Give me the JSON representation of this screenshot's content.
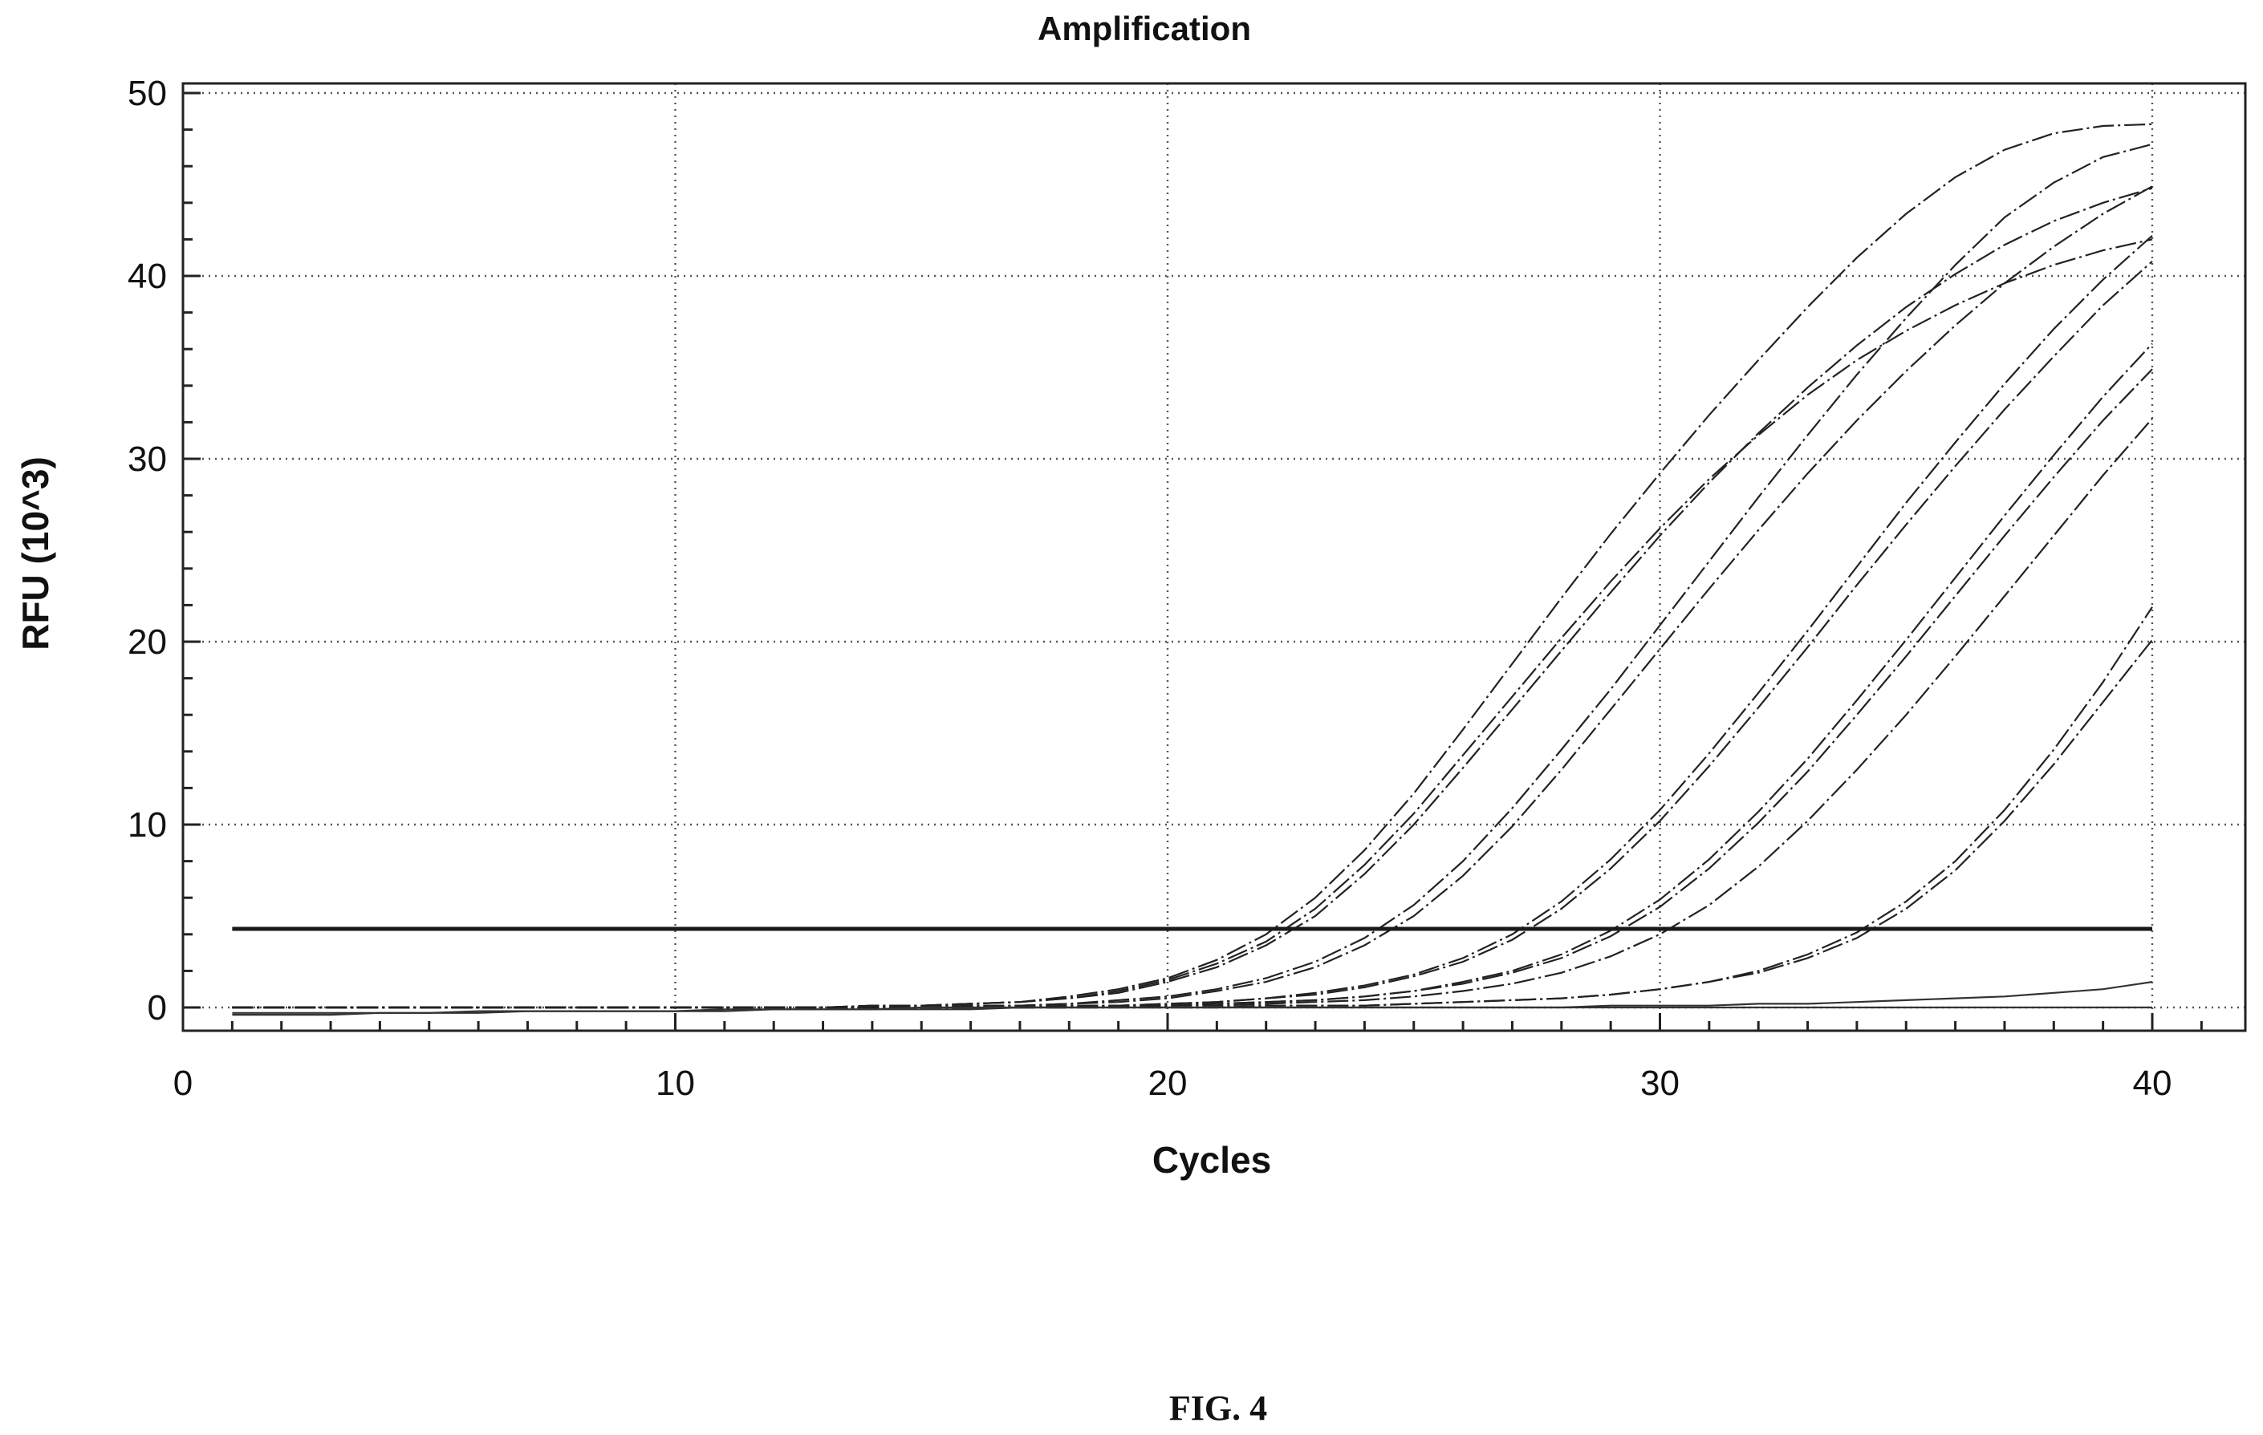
{
  "caption": "FIG. 4",
  "chart_data": {
    "type": "line",
    "title": "Amplification",
    "xlabel": "Cycles",
    "ylabel": "RFU (10^3)",
    "xlim": [
      0,
      42
    ],
    "ylim": [
      -1.2,
      50.5
    ],
    "x_ticks": [
      0,
      10,
      20,
      30,
      40
    ],
    "y_ticks": [
      0,
      10,
      20,
      30,
      40,
      50
    ],
    "x_tick_labels": [
      "0",
      "10",
      "20",
      "30",
      "40"
    ],
    "y_tick_labels": [
      "0",
      "10",
      "20",
      "30",
      "40",
      "50"
    ],
    "grid": true,
    "legend": "none",
    "threshold": 4.3,
    "x": [
      1,
      2,
      3,
      4,
      5,
      6,
      7,
      8,
      9,
      10,
      11,
      12,
      13,
      14,
      15,
      16,
      17,
      18,
      19,
      20,
      21,
      22,
      23,
      24,
      25,
      26,
      27,
      28,
      29,
      30,
      31,
      32,
      33,
      34,
      35,
      36,
      37,
      38,
      39,
      40
    ],
    "series": [
      {
        "values": [
          0,
          0,
          0,
          0,
          0,
          0,
          0,
          0,
          0,
          0,
          0,
          0,
          0,
          0.1,
          0.1,
          0.2,
          0.3,
          0.6,
          1.0,
          1.6,
          2.6,
          4.0,
          6.0,
          8.6,
          11.7,
          15.2,
          18.8,
          22.4,
          25.9,
          29.2,
          32.4,
          35.4,
          38.3,
          41.0,
          43.4,
          45.4,
          46.9,
          47.8,
          48.2,
          48.3
        ]
      },
      {
        "values": [
          0,
          0,
          0,
          0,
          0,
          0,
          0,
          0,
          0,
          0,
          0,
          0,
          0,
          0.1,
          0.1,
          0.2,
          0.3,
          0.5,
          0.9,
          1.5,
          2.4,
          3.6,
          5.4,
          7.8,
          10.6,
          13.8,
          17.0,
          20.2,
          23.3,
          26.2,
          28.9,
          31.3,
          33.5,
          35.4,
          37.0,
          38.4,
          39.6,
          40.6,
          41.4,
          42.0
        ]
      },
      {
        "values": [
          0,
          0,
          0,
          0,
          0,
          0,
          0,
          0,
          0,
          0,
          0,
          0,
          0,
          0.1,
          0.1,
          0.2,
          0.3,
          0.5,
          0.8,
          1.4,
          2.2,
          3.4,
          5.0,
          7.3,
          10.0,
          13.1,
          16.3,
          19.5,
          22.7,
          25.8,
          28.7,
          31.4,
          33.9,
          36.2,
          38.3,
          40.1,
          41.7,
          43.0,
          44.0,
          44.8
        ]
      },
      {
        "values": [
          0,
          0,
          0,
          0,
          0,
          0,
          0,
          0,
          0,
          0,
          0,
          0,
          0,
          0,
          0,
          0.1,
          0.1,
          0.2,
          0.4,
          0.6,
          1.0,
          1.6,
          2.5,
          3.8,
          5.6,
          8.0,
          10.9,
          14.1,
          17.4,
          20.9,
          24.4,
          27.9,
          31.3,
          34.6,
          37.7,
          40.6,
          43.2,
          45.1,
          46.5,
          47.2
        ]
      },
      {
        "values": [
          0,
          0,
          0,
          0,
          0,
          0,
          0,
          0,
          0,
          0,
          0,
          0,
          0,
          0,
          0,
          0.1,
          0.1,
          0.2,
          0.3,
          0.5,
          0.9,
          1.4,
          2.2,
          3.4,
          5.0,
          7.2,
          9.9,
          13.0,
          16.3,
          19.6,
          22.9,
          26.1,
          29.2,
          32.1,
          34.8,
          37.3,
          39.6,
          41.6,
          43.4,
          44.9
        ]
      },
      {
        "values": [
          0,
          0,
          0,
          0,
          0,
          0,
          0,
          0,
          0,
          0,
          0,
          0,
          0,
          0,
          0,
          0,
          0,
          0.1,
          0.1,
          0.2,
          0.3,
          0.5,
          0.8,
          1.2,
          1.8,
          2.7,
          4.0,
          5.8,
          8.1,
          10.8,
          13.9,
          17.2,
          20.6,
          24.1,
          27.6,
          30.9,
          34.1,
          37.1,
          39.8,
          42.2
        ]
      },
      {
        "values": [
          0,
          0,
          0,
          0,
          0,
          0,
          0,
          0,
          0,
          0,
          0,
          0,
          0,
          0,
          0,
          0,
          0,
          0.1,
          0.1,
          0.2,
          0.3,
          0.5,
          0.7,
          1.1,
          1.7,
          2.5,
          3.7,
          5.4,
          7.6,
          10.2,
          13.2,
          16.4,
          19.7,
          23.1,
          26.4,
          29.6,
          32.7,
          35.6,
          38.4,
          40.8
        ]
      },
      {
        "values": [
          0,
          0,
          0,
          0,
          0,
          0,
          0,
          0,
          0,
          0,
          0,
          0,
          0,
          0,
          0,
          0,
          0,
          0,
          0.1,
          0.1,
          0.2,
          0.3,
          0.4,
          0.6,
          0.9,
          1.4,
          2.0,
          2.9,
          4.2,
          5.9,
          8.1,
          10.7,
          13.6,
          16.8,
          20.1,
          23.5,
          26.9,
          30.2,
          33.4,
          36.3
        ]
      },
      {
        "values": [
          0,
          0,
          0,
          0,
          0,
          0,
          0,
          0,
          0,
          0,
          0,
          0,
          0,
          0,
          0,
          0,
          0,
          0,
          0.1,
          0.1,
          0.2,
          0.3,
          0.4,
          0.6,
          0.9,
          1.3,
          1.9,
          2.7,
          3.9,
          5.5,
          7.6,
          10.1,
          12.9,
          16.0,
          19.2,
          22.5,
          25.8,
          29.0,
          32.1,
          34.9
        ]
      },
      {
        "values": [
          0,
          0,
          0,
          0,
          0,
          0,
          0,
          0,
          0,
          0,
          0,
          0,
          0,
          0,
          0,
          0,
          0,
          0,
          0,
          0.1,
          0.1,
          0.2,
          0.3,
          0.4,
          0.6,
          0.9,
          1.3,
          1.9,
          2.8,
          4.0,
          5.6,
          7.7,
          10.2,
          13.0,
          16.0,
          19.2,
          22.5,
          25.8,
          29.1,
          32.2
        ]
      },
      {
        "values": [
          0,
          0,
          0,
          0,
          0,
          0,
          0,
          0,
          0,
          0,
          0,
          0,
          0,
          0,
          0,
          0,
          0,
          0,
          0,
          0,
          0,
          0.1,
          0.1,
          0.1,
          0.2,
          0.3,
          0.4,
          0.5,
          0.7,
          1.0,
          1.4,
          2.0,
          2.9,
          4.1,
          5.8,
          8.0,
          10.8,
          14.1,
          17.8,
          21.9
        ]
      },
      {
        "values": [
          0,
          0,
          0,
          0,
          0,
          0,
          0,
          0,
          0,
          0,
          0,
          0,
          0,
          0,
          0,
          0,
          0,
          0,
          0,
          0,
          0,
          0.1,
          0.1,
          0.1,
          0.2,
          0.3,
          0.4,
          0.5,
          0.7,
          1.0,
          1.4,
          1.9,
          2.7,
          3.8,
          5.4,
          7.5,
          10.2,
          13.3,
          16.7,
          20.1
        ]
      },
      {
        "values": [
          -0.3,
          -0.3,
          -0.3,
          -0.3,
          -0.3,
          -0.2,
          -0.2,
          -0.2,
          -0.2,
          -0.2,
          -0.2,
          -0.1,
          -0.1,
          -0.1,
          -0.1,
          -0.1,
          0,
          0,
          0,
          0,
          0,
          0,
          0,
          0,
          0,
          0,
          0,
          0,
          0.1,
          0.1,
          0.1,
          0.2,
          0.2,
          0.3,
          0.4,
          0.5,
          0.6,
          0.8,
          1.0,
          1.4
        ]
      },
      {
        "values": [
          -0.4,
          -0.4,
          -0.4,
          -0.3,
          -0.3,
          -0.3,
          -0.2,
          -0.2,
          -0.2,
          -0.2,
          -0.1,
          -0.1,
          -0.1,
          -0.1,
          0,
          0,
          0,
          0,
          0,
          0,
          0,
          0,
          0,
          0,
          0,
          0,
          0,
          0,
          0,
          0,
          0,
          0,
          0,
          0,
          0,
          0,
          0,
          0,
          0,
          0
        ]
      }
    ]
  }
}
